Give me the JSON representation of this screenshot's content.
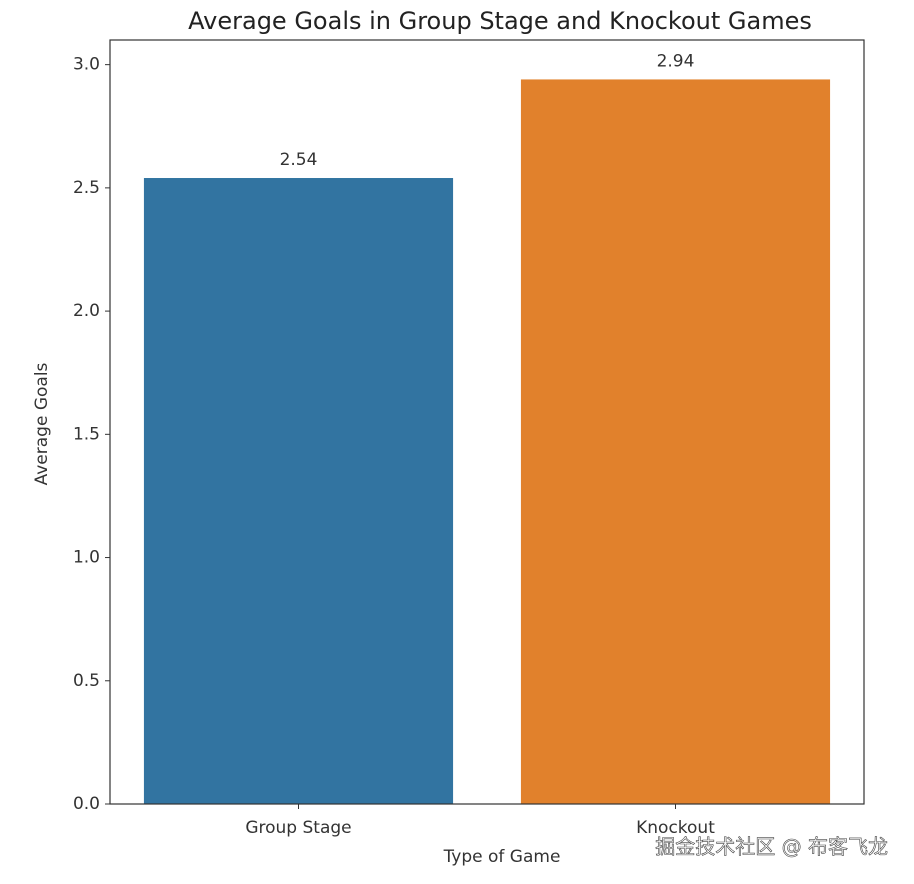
{
  "chart_data": {
    "type": "bar",
    "title": "Average Goals in Group Stage and Knockout Games",
    "x_label": "Type of Game",
    "y_label": "Average Goals",
    "categories": [
      "Group Stage",
      "Knockout"
    ],
    "values": [
      2.54,
      2.94
    ],
    "colors": [
      "#3274a1",
      "#e1812c"
    ],
    "ylim": [
      0,
      3.1
    ],
    "yticks": [
      {
        "value": 0,
        "label": "0.0"
      },
      0.5,
      {
        "value": 1,
        "label": "1.0"
      },
      1.5,
      {
        "value": 2,
        "label": "2.0"
      },
      2.5,
      {
        "value": 3,
        "label": "3.0"
      }
    ],
    "grid": false,
    "watermark": "掘金技术社区 @ 布客飞龙"
  }
}
